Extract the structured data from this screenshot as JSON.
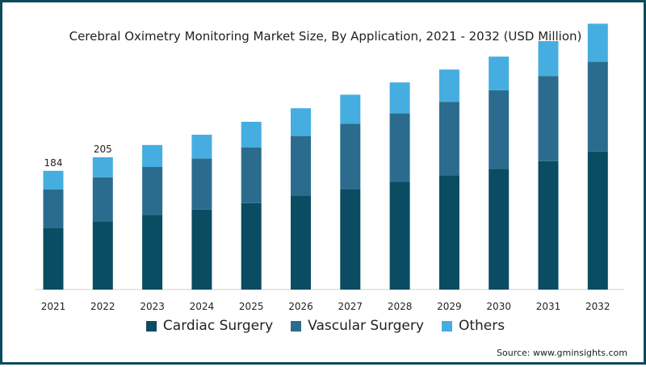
{
  "chart_data": {
    "type": "bar",
    "stacked": true,
    "title": "Cerebral Oximetry Monitoring Market Size, By Application, 2021 - 2032  (USD Million)",
    "xlabel": "",
    "ylabel": "",
    "categories": [
      "2021",
      "2022",
      "2023",
      "2024",
      "2025",
      "2026",
      "2027",
      "2028",
      "2029",
      "2030",
      "2031",
      "2032"
    ],
    "series": [
      {
        "name": "Cardiac Surgery",
        "color": "#0a4c62",
        "values": [
          95,
          106,
          115,
          124,
          134,
          145,
          156,
          167,
          177,
          187,
          199,
          214
        ]
      },
      {
        "name": "Vascular Surgery",
        "color": "#2b6c8e",
        "values": [
          60,
          68,
          75,
          79,
          86,
          93,
          101,
          106,
          114,
          122,
          132,
          139
        ]
      },
      {
        "name": "Others",
        "color": "#45ade0",
        "values": [
          29,
          31,
          34,
          37,
          40,
          43,
          45,
          48,
          50,
          52,
          54,
          59
        ]
      }
    ],
    "data_labels": [
      {
        "category": "2021",
        "text": "184"
      },
      {
        "category": "2022",
        "text": "205"
      }
    ],
    "ylim": [
      0,
      420
    ],
    "grid": false,
    "legend_position": "bottom"
  },
  "source": "Source: www.gminsights.com"
}
